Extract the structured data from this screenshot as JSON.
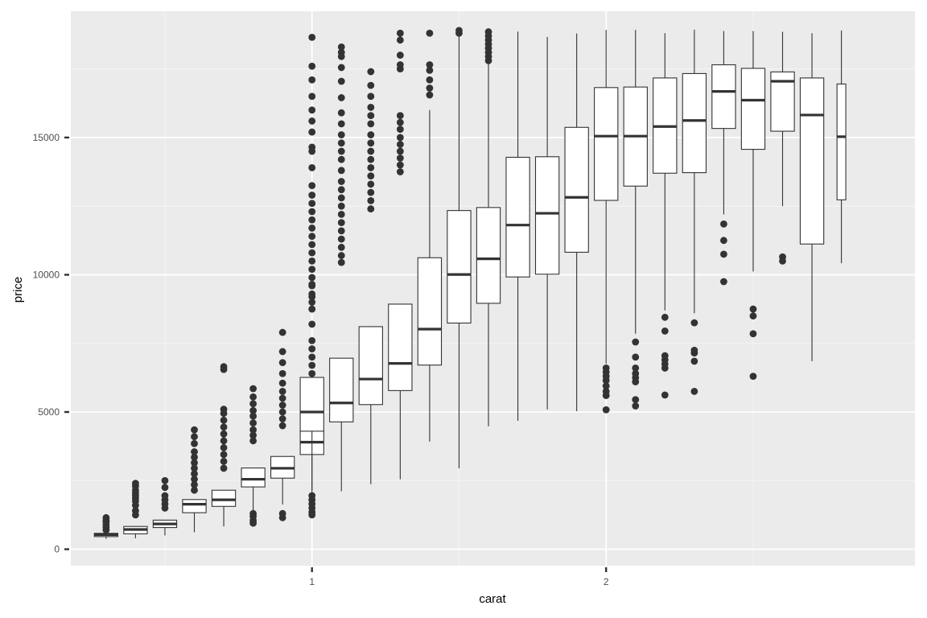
{
  "chart_data": {
    "type": "boxplot",
    "xlabel": "carat",
    "ylabel": "price",
    "xlim": [
      0.18,
      3.05
    ],
    "ylim": [
      -600,
      19600
    ],
    "x_ticks": [
      {
        "value": 1,
        "label": "1"
      },
      {
        "value": 2,
        "label": "2"
      }
    ],
    "y_ticks": [
      {
        "value": 0,
        "label": "0"
      },
      {
        "value": 5000,
        "label": "5000"
      },
      {
        "value": 10000,
        "label": "10000"
      },
      {
        "value": 15000,
        "label": "15000"
      }
    ],
    "grid": true,
    "colors": {
      "panel": "#ebebeb",
      "grid_major": "#ffffff",
      "grid_minor": "#f5f5f5",
      "box_line": "#333333",
      "box_fill": "#ffffff",
      "outlier": "#333333"
    },
    "box_width": 0.08,
    "boxes": [
      {
        "x": 0.3,
        "q1": 460,
        "median": 530,
        "q3": 580,
        "lower": 380,
        "upper": 600,
        "outliers": [
          700,
          800,
          900,
          1000,
          1050,
          1150
        ]
      },
      {
        "x": 0.4,
        "q1": 560,
        "median": 720,
        "q3": 830,
        "lower": 400,
        "upper": 840,
        "outliers": [
          1250,
          1400,
          1600,
          1750,
          1850,
          1950,
          2050,
          2150,
          2300,
          2400
        ]
      },
      {
        "x": 0.5,
        "q1": 790,
        "median": 920,
        "q3": 1060,
        "lower": 500,
        "upper": 1070,
        "outliers": [
          1500,
          1650,
          1800,
          1950,
          2250,
          2500
        ]
      },
      {
        "x": 0.6,
        "q1": 1330,
        "median": 1640,
        "q3": 1810,
        "lower": 620,
        "upper": 1820,
        "outliers": [
          2150,
          2350,
          2550,
          2750,
          2950,
          3150,
          3350,
          3550,
          3850,
          4100,
          4350
        ]
      },
      {
        "x": 0.7,
        "q1": 1560,
        "median": 1800,
        "q3": 2150,
        "lower": 830,
        "upper": 2160,
        "outliers": [
          2950,
          3200,
          3450,
          3700,
          3950,
          4200,
          4450,
          4700,
          4950,
          5100,
          6550,
          6650
        ]
      },
      {
        "x": 0.8,
        "q1": 2270,
        "median": 2550,
        "q3": 2960,
        "lower": 1320,
        "upper": 2970,
        "outliers": [
          950,
          1050,
          1200,
          1300,
          3950,
          4150,
          4350,
          4600,
          4850,
          5050,
          5300,
          5550,
          5850
        ]
      },
      {
        "x": 0.9,
        "q1": 2590,
        "median": 2950,
        "q3": 3380,
        "lower": 1630,
        "upper": 3390,
        "outliers": [
          1150,
          1300,
          4500,
          4750,
          5000,
          5250,
          5500,
          5750,
          6050,
          6400,
          6800,
          7200,
          7900
        ]
      },
      {
        "x": 1.0,
        "q1": 3450,
        "median": 3900,
        "q3": 4360,
        "lower": 2150,
        "upper": 4370,
        "outliers": [
          1350,
          1500,
          1650,
          1800,
          1950,
          5500,
          5800,
          6100,
          6400,
          6700,
          7000,
          7300,
          7600,
          8200,
          8750,
          9000,
          9200,
          9650
        ]
      },
      {
        "x": 1.0,
        "q1": 4300,
        "median": 5000,
        "q3": 6260,
        "lower": 1520,
        "upper": 6270,
        "outliers": [
          1250,
          9300,
          9600,
          9900,
          10200,
          10500,
          10800,
          11100,
          11400,
          11700,
          12000,
          12300,
          12600,
          12900,
          13250,
          13900,
          14500,
          14650,
          15200,
          15600,
          16000,
          16500,
          17100,
          17600,
          18650
        ]
      },
      {
        "x": 1.1,
        "q1": 4640,
        "median": 5330,
        "q3": 6960,
        "lower": 2110,
        "upper": 6970,
        "outliers": [
          10450,
          10700,
          11000,
          11300,
          11600,
          11900,
          12200,
          12500,
          12800,
          13100,
          13400,
          13800,
          14200,
          14500,
          14800,
          15100,
          15500,
          15900,
          16450,
          17050,
          17550,
          17950,
          18100,
          18300
        ]
      },
      {
        "x": 1.2,
        "q1": 5270,
        "median": 6200,
        "q3": 8110,
        "lower": 2370,
        "upper": 8120,
        "outliers": [
          12400,
          12700,
          13000,
          13300,
          13600,
          13900,
          14200,
          14500,
          14800,
          15100,
          15500,
          15800,
          16100,
          16500,
          16900,
          17400
        ]
      },
      {
        "x": 1.3,
        "q1": 5780,
        "median": 6770,
        "q3": 8930,
        "lower": 2550,
        "upper": 8940,
        "outliers": [
          13750,
          14000,
          14250,
          14500,
          14750,
          15000,
          15300,
          15550,
          15800,
          17500,
          17650,
          18000,
          18550,
          18800
        ]
      },
      {
        "x": 1.4,
        "q1": 6710,
        "median": 8020,
        "q3": 10620,
        "lower": 3920,
        "upper": 16000,
        "outliers": [
          16550,
          16800,
          17100,
          17450,
          17650,
          18800
        ]
      },
      {
        "x": 1.5,
        "q1": 8240,
        "median": 10010,
        "q3": 12340,
        "lower": 2950,
        "upper": 18750,
        "outliers": [
          18800,
          18900
        ]
      },
      {
        "x": 1.6,
        "q1": 8960,
        "median": 10580,
        "q3": 12450,
        "lower": 4480,
        "upper": 17700,
        "outliers": [
          17800,
          17950,
          18100,
          18250,
          18400,
          18550,
          18700,
          18850
        ]
      },
      {
        "x": 1.7,
        "q1": 9920,
        "median": 11810,
        "q3": 14280,
        "lower": 4680,
        "upper": 18860,
        "outliers": []
      },
      {
        "x": 1.8,
        "q1": 10020,
        "median": 12240,
        "q3": 14300,
        "lower": 5090,
        "upper": 18660,
        "outliers": []
      },
      {
        "x": 1.9,
        "q1": 10820,
        "median": 12820,
        "q3": 15370,
        "lower": 5030,
        "upper": 18790,
        "outliers": []
      },
      {
        "x": 2.0,
        "q1": 12710,
        "median": 15050,
        "q3": 16820,
        "lower": 6750,
        "upper": 18920,
        "outliers": [
          5080,
          5600,
          5750,
          5950,
          6150,
          6300,
          6450,
          6600
        ]
      },
      {
        "x": 2.1,
        "q1": 13230,
        "median": 15050,
        "q3": 16840,
        "lower": 7850,
        "upper": 18920,
        "outliers": [
          5220,
          5450,
          6100,
          6250,
          6400,
          6600,
          7000,
          7550
        ]
      },
      {
        "x": 2.2,
        "q1": 13700,
        "median": 15400,
        "q3": 17170,
        "lower": 8700,
        "upper": 18800,
        "outliers": [
          5620,
          6600,
          6750,
          6900,
          7050,
          7950,
          8450
        ]
      },
      {
        "x": 2.3,
        "q1": 13720,
        "median": 15620,
        "q3": 17330,
        "lower": 8600,
        "upper": 18930,
        "outliers": [
          5750,
          6850,
          7150,
          7250,
          8250
        ]
      },
      {
        "x": 2.4,
        "q1": 15330,
        "median": 16680,
        "q3": 17650,
        "lower": 12200,
        "upper": 18880,
        "outliers": [
          9750,
          10750,
          11250,
          11850
        ]
      },
      {
        "x": 2.5,
        "q1": 14570,
        "median": 16360,
        "q3": 17520,
        "lower": 10120,
        "upper": 18880,
        "outliers": [
          6300,
          7850,
          8500,
          8750
        ]
      },
      {
        "x": 2.6,
        "q1": 15230,
        "median": 17050,
        "q3": 17390,
        "lower": 12500,
        "upper": 18850,
        "outliers": [
          10500,
          10650
        ]
      },
      {
        "x": 2.7,
        "q1": 11120,
        "median": 15820,
        "q3": 17170,
        "lower": 6850,
        "upper": 18800,
        "outliers": []
      },
      {
        "x": 2.8,
        "q1": 12730,
        "median": 15030,
        "q3": 16950,
        "lower": 10420,
        "upper": 18900,
        "outliers": [],
        "width": 0.03
      }
    ]
  }
}
